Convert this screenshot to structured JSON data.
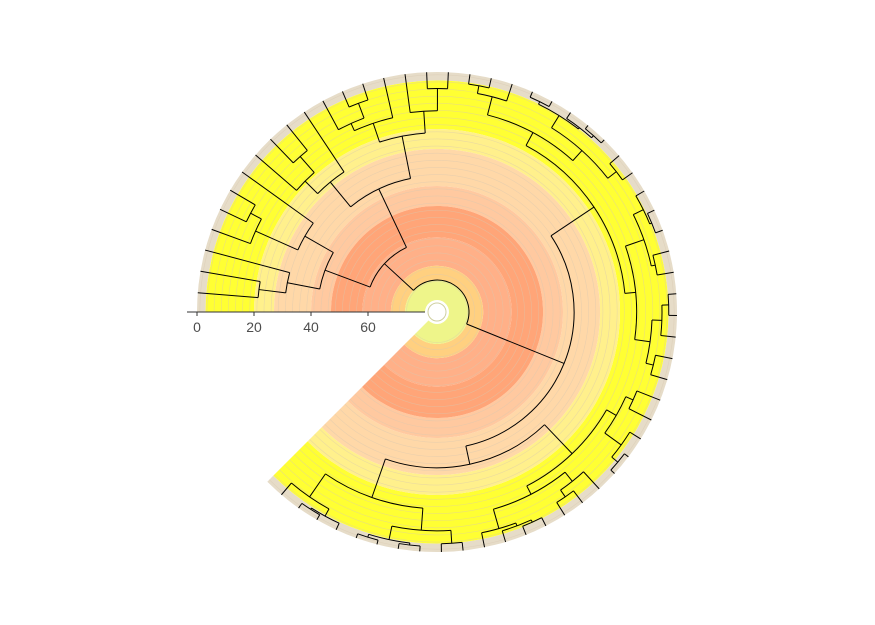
{
  "chart_data": {
    "type": "circular-dendrogram",
    "title": "",
    "xlabel": "",
    "ylabel": "",
    "axis": {
      "ticks": [
        {
          "value": 0,
          "label": "0"
        },
        {
          "value": 20,
          "label": "20"
        },
        {
          "value": 40,
          "label": "40"
        },
        {
          "value": 60,
          "label": "60"
        }
      ],
      "range": [
        0,
        80
      ]
    },
    "arc_degrees": [
      0,
      315
    ],
    "background_bands": [
      {
        "from": 0,
        "to": 3,
        "color": "#E6DCC8"
      },
      {
        "from": 3,
        "to": 20,
        "color": "#FFFF33"
      },
      {
        "from": 20,
        "to": 27,
        "color": "#FFF08C"
      },
      {
        "from": 27,
        "to": 40,
        "color": "#FFD8A8"
      },
      {
        "from": 40,
        "to": 47,
        "color": "#FFC9A0"
      },
      {
        "from": 47,
        "to": 58,
        "color": "#FFA578"
      },
      {
        "from": 58,
        "to": 68,
        "color": "#FFB088"
      },
      {
        "from": 68,
        "to": 73,
        "color": "#FFD080"
      },
      {
        "from": 73,
        "to": 80,
        "color": "#EEF58A"
      }
    ],
    "leaf_count": 60,
    "root_height": 73
  }
}
